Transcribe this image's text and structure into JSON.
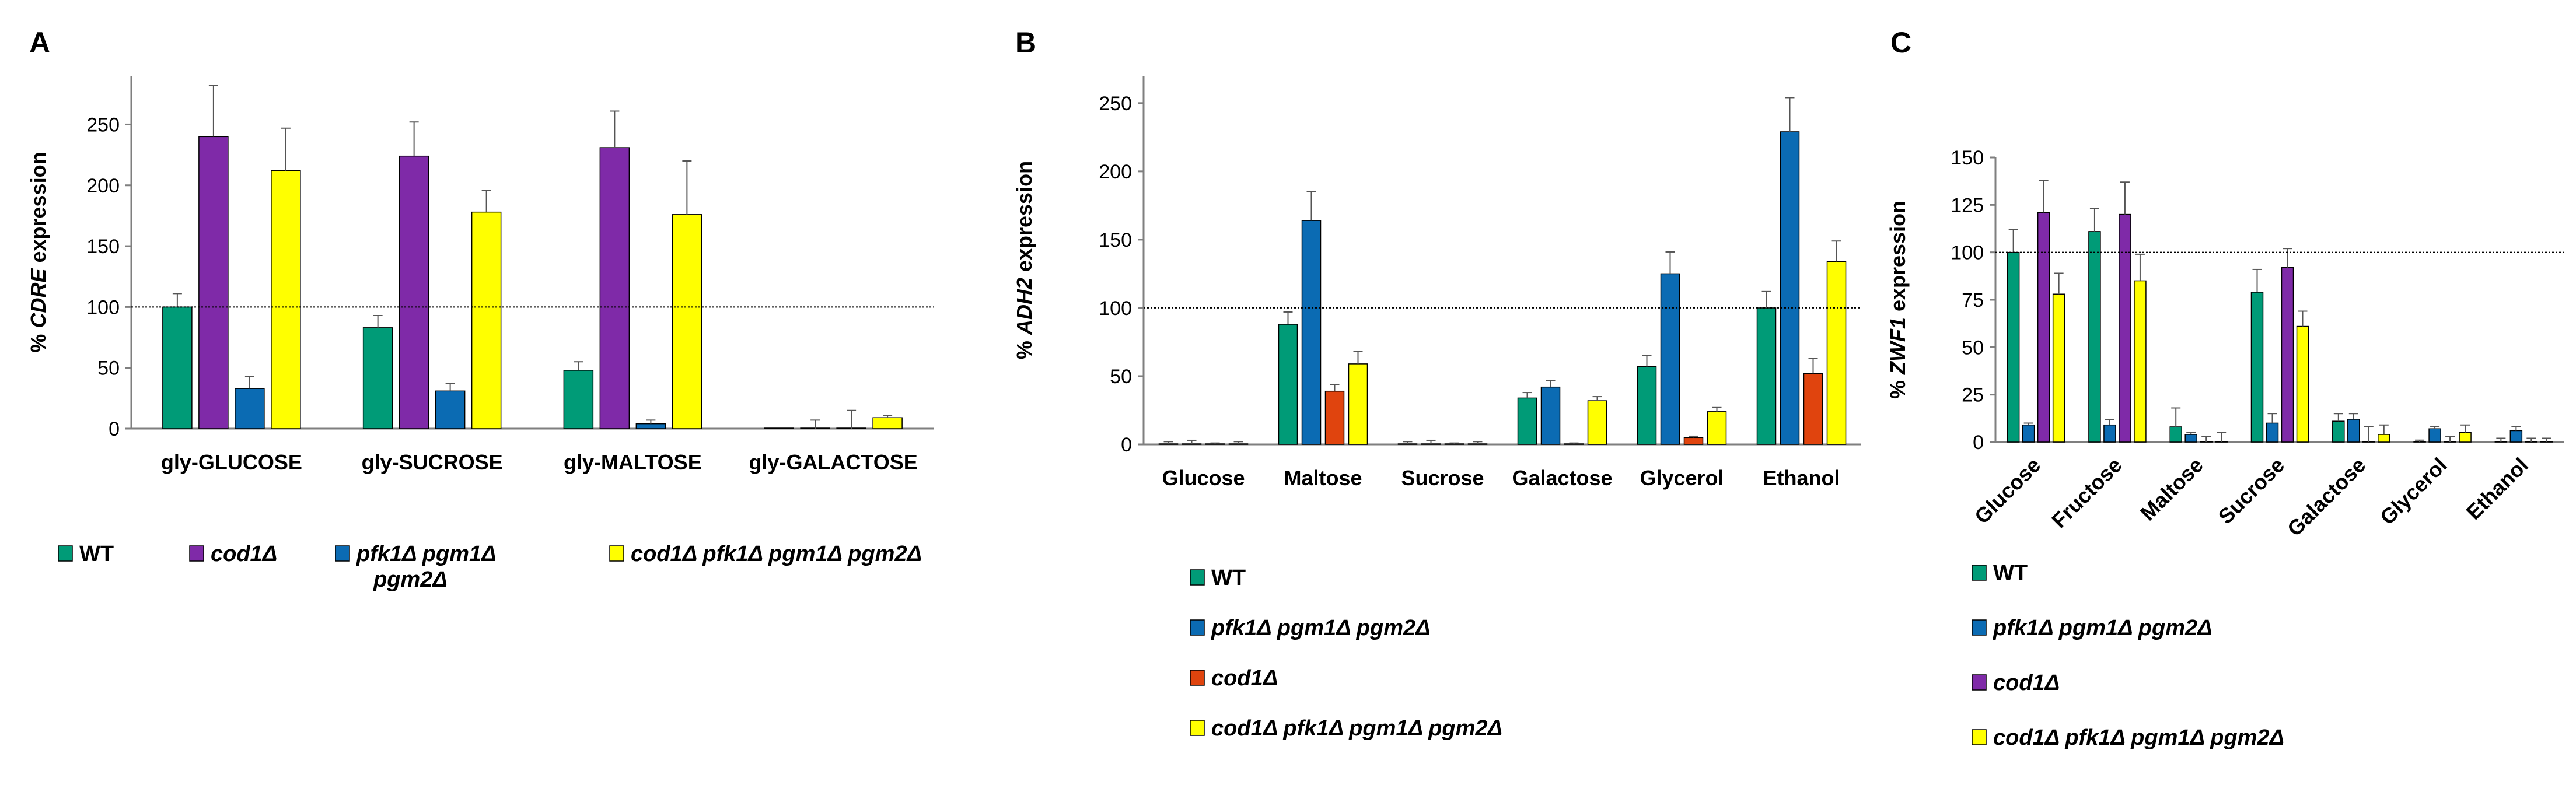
{
  "figure": {
    "panels": [
      "A",
      "B",
      "C"
    ]
  },
  "chart_data": [
    {
      "panel": "A",
      "type": "bar",
      "title": "",
      "ylabel_prefix": "% ",
      "ylabel_gene": "CDRE",
      "ylabel_suffix": " expression",
      "ylim": [
        0,
        290
      ],
      "yticks": [
        0,
        50,
        100,
        150,
        200,
        250
      ],
      "reference_line": 100,
      "categories": [
        "gly-GLUCOSE",
        "gly-SUCROSE",
        "gly-MALTOSE",
        "gly-GALACTOSE"
      ],
      "series": [
        {
          "name": "WT",
          "color": "#009B77",
          "values": [
            100,
            83,
            48,
            0
          ],
          "errors": [
            11,
            10,
            7,
            0
          ]
        },
        {
          "name": "cod1Δ",
          "color": "#7F2AA8",
          "values": [
            240,
            224,
            231,
            0
          ],
          "errors": [
            42,
            28,
            30,
            7
          ]
        },
        {
          "name": "pfk1Δ pgm1Δ pgm2Δ",
          "color": "#0B6BB3",
          "values": [
            33,
            31,
            4,
            0
          ],
          "errors": [
            10,
            6,
            3,
            15
          ]
        },
        {
          "name": "cod1Δ pfk1Δ pgm1Δ pgm2Δ",
          "color": "#FFFF00",
          "values": [
            212,
            178,
            176,
            9
          ],
          "errors": [
            35,
            18,
            44,
            2
          ]
        }
      ],
      "legend": [
        {
          "label": "WT",
          "italic": false
        },
        {
          "label": "cod1Δ",
          "italic": true
        },
        {
          "label": "pfk1Δ pgm1Δ",
          "label2": "pgm2Δ",
          "italic": true
        },
        {
          "label": "cod1Δ pfk1Δ pgm1Δ pgm2Δ",
          "italic": true
        }
      ]
    },
    {
      "panel": "B",
      "type": "bar",
      "title": "",
      "ylabel_prefix": "% ",
      "ylabel_gene": "ADH2",
      "ylabel_suffix": " expression",
      "ylim": [
        0,
        270
      ],
      "yticks": [
        0,
        50,
        100,
        150,
        200,
        250
      ],
      "reference_line": 100,
      "categories": [
        "Glucose",
        "Maltose",
        "Sucrose",
        "Galactose",
        "Glycerol",
        "Ethanol"
      ],
      "series": [
        {
          "name": "WT",
          "color": "#009B77",
          "values": [
            0,
            88,
            0,
            34,
            57,
            100
          ],
          "errors": [
            2,
            9,
            2,
            4,
            8,
            12
          ]
        },
        {
          "name": "pfk1Δ pgm1Δ pgm2Δ",
          "color": "#0B6BB3",
          "values": [
            0,
            164,
            0,
            42,
            125,
            229
          ],
          "errors": [
            3,
            21,
            3,
            5,
            16,
            25
          ]
        },
        {
          "name": "cod1Δ",
          "color": "#E0440E",
          "values": [
            0,
            39,
            0,
            0,
            5,
            52
          ],
          "errors": [
            1,
            5,
            1,
            1,
            1,
            11
          ]
        },
        {
          "name": "cod1Δ pfk1Δ pgm1Δ pgm2Δ",
          "color": "#FFFF00",
          "values": [
            0,
            59,
            0,
            32,
            24,
            134
          ],
          "errors": [
            2,
            9,
            2,
            3,
            3,
            15
          ]
        }
      ],
      "legend": [
        {
          "label": "WT",
          "italic": false
        },
        {
          "label": "pfk1Δ pgm1Δ pgm2Δ",
          "italic": true
        },
        {
          "label": "cod1Δ",
          "italic": true
        },
        {
          "label": "cod1Δ pfk1Δ pgm1Δ pgm2Δ",
          "italic": true
        }
      ]
    },
    {
      "panel": "C",
      "type": "bar",
      "title": "",
      "ylabel_prefix": "% ",
      "ylabel_gene": "ZWF1",
      "ylabel_suffix": " expression",
      "ylim": [
        0,
        150
      ],
      "yticks": [
        0,
        25,
        50,
        75,
        100,
        125,
        150
      ],
      "reference_line": 100,
      "categories": [
        "Glucose",
        "Fructose",
        "Maltose",
        "Sucrose",
        "Galactose",
        "Glycerol",
        "Ethanol"
      ],
      "series": [
        {
          "name": "WT",
          "color": "#009B77",
          "values": [
            100,
            111,
            8,
            79,
            11,
            0,
            0
          ],
          "errors": [
            12,
            12,
            10,
            12,
            4,
            1,
            2
          ]
        },
        {
          "name": "pfk1Δ pgm1Δ pgm2Δ",
          "color": "#0B6BB3",
          "values": [
            9,
            9,
            4,
            10,
            12,
            7,
            6
          ],
          "errors": [
            1,
            3,
            1,
            5,
            3,
            1,
            2
          ]
        },
        {
          "name": "cod1Δ",
          "color": "#7F2AA8",
          "values": [
            121,
            120,
            0,
            92,
            0,
            0,
            0
          ],
          "errors": [
            17,
            17,
            3,
            10,
            8,
            3,
            2
          ]
        },
        {
          "name": "cod1Δ pfk1Δ pgm1Δ pgm2Δ",
          "color": "#FFFF00",
          "values": [
            78,
            85,
            0,
            61,
            4,
            5,
            0
          ],
          "errors": [
            11,
            14,
            5,
            8,
            5,
            4,
            2
          ]
        }
      ],
      "legend": [
        {
          "label": "WT",
          "italic": false
        },
        {
          "label": "pfk1Δ pgm1Δ pgm2Δ",
          "italic": true
        },
        {
          "label": "cod1Δ",
          "italic": true
        },
        {
          "label": "cod1Δ pfk1Δ pgm1Δ pgm2Δ",
          "italic": true
        }
      ]
    }
  ]
}
